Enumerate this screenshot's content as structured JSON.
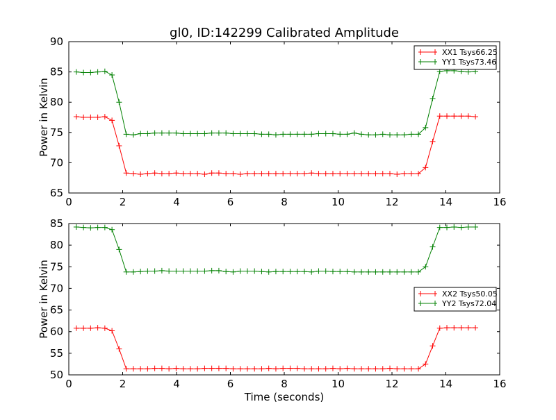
{
  "chart_data": [
    {
      "type": "line",
      "title": "gl0, ID:142299 Calibrated Amplitude",
      "xlabel": "",
      "ylabel": "Power in Kelvin",
      "xlim": [
        0,
        16
      ],
      "ylim": [
        65,
        90
      ],
      "xticks": [
        0,
        2,
        4,
        6,
        8,
        10,
        12,
        14,
        16
      ],
      "yticks": [
        65,
        70,
        75,
        80,
        85,
        90
      ],
      "legend": "top-right",
      "series": [
        {
          "name": "XX1 Tsys66.25",
          "color": "#ff0000",
          "values": [
            77.6,
            77.5,
            77.5,
            77.5,
            77.6,
            77.0,
            72.8,
            68.3,
            68.2,
            68.1,
            68.2,
            68.3,
            68.2,
            68.2,
            68.3,
            68.2,
            68.2,
            68.2,
            68.1,
            68.3,
            68.3,
            68.2,
            68.2,
            68.1,
            68.2,
            68.2,
            68.2,
            68.2,
            68.2,
            68.2,
            68.2,
            68.2,
            68.2,
            68.3,
            68.2,
            68.2,
            68.2,
            68.2,
            68.2,
            68.2,
            68.2,
            68.2,
            68.2,
            68.2,
            68.2,
            68.1,
            68.2,
            68.2,
            68.2,
            69.2,
            73.5,
            77.7,
            77.7,
            77.7,
            77.7,
            77.7,
            77.6
          ]
        },
        {
          "name": "YY1 Tsys73.46",
          "color": "#008000",
          "values": [
            85.0,
            84.9,
            84.9,
            85.0,
            85.1,
            84.5,
            80.0,
            74.7,
            74.6,
            74.8,
            74.8,
            74.9,
            74.9,
            74.9,
            74.9,
            74.8,
            74.8,
            74.8,
            74.8,
            74.9,
            74.9,
            74.9,
            74.8,
            74.8,
            74.8,
            74.8,
            74.7,
            74.7,
            74.6,
            74.7,
            74.7,
            74.7,
            74.7,
            74.7,
            74.8,
            74.8,
            74.8,
            74.7,
            74.7,
            74.9,
            74.7,
            74.6,
            74.6,
            74.7,
            74.6,
            74.6,
            74.6,
            74.7,
            74.7,
            75.8,
            80.6,
            85.1,
            85.2,
            85.2,
            85.1,
            85.0,
            85.1
          ]
        }
      ]
    },
    {
      "type": "line",
      "title": "",
      "xlabel": "Time (seconds)",
      "ylabel": "Power in Kelvin",
      "xlim": [
        0,
        16
      ],
      "ylim": [
        50,
        85
      ],
      "xticks": [
        0,
        2,
        4,
        6,
        8,
        10,
        12,
        14,
        16
      ],
      "yticks": [
        50,
        55,
        60,
        65,
        70,
        75,
        80,
        85
      ],
      "legend": "center-right",
      "series": [
        {
          "name": "XX2 Tsys50.05",
          "color": "#ff0000",
          "values": [
            60.8,
            60.8,
            60.8,
            60.9,
            60.8,
            60.2,
            56.0,
            51.4,
            51.4,
            51.4,
            51.4,
            51.5,
            51.5,
            51.4,
            51.5,
            51.4,
            51.4,
            51.4,
            51.5,
            51.5,
            51.5,
            51.5,
            51.4,
            51.4,
            51.4,
            51.4,
            51.4,
            51.5,
            51.4,
            51.5,
            51.5,
            51.5,
            51.4,
            51.4,
            51.4,
            51.4,
            51.5,
            51.4,
            51.5,
            51.4,
            51.4,
            51.4,
            51.4,
            51.4,
            51.5,
            51.4,
            51.4,
            51.4,
            51.4,
            52.5,
            56.7,
            60.8,
            60.9,
            60.9,
            60.9,
            60.9,
            60.9
          ]
        },
        {
          "name": "YY2 Tsys72.04",
          "color": "#008000",
          "values": [
            84.2,
            84.1,
            84.0,
            84.1,
            84.1,
            83.6,
            79.0,
            73.8,
            73.8,
            73.9,
            74.0,
            74.0,
            74.1,
            74.0,
            74.0,
            74.0,
            74.0,
            74.0,
            74.0,
            74.1,
            74.1,
            73.9,
            73.8,
            74.0,
            74.0,
            74.0,
            73.9,
            73.8,
            73.9,
            73.9,
            73.9,
            73.9,
            73.9,
            73.8,
            74.0,
            74.0,
            73.9,
            73.9,
            73.9,
            73.8,
            73.8,
            73.8,
            73.8,
            73.8,
            73.8,
            73.8,
            73.8,
            73.8,
            73.8,
            75.0,
            79.6,
            84.1,
            84.1,
            84.2,
            84.1,
            84.2,
            84.2
          ]
        }
      ]
    }
  ],
  "x_start": 0.28,
  "x_step": 0.2646
}
